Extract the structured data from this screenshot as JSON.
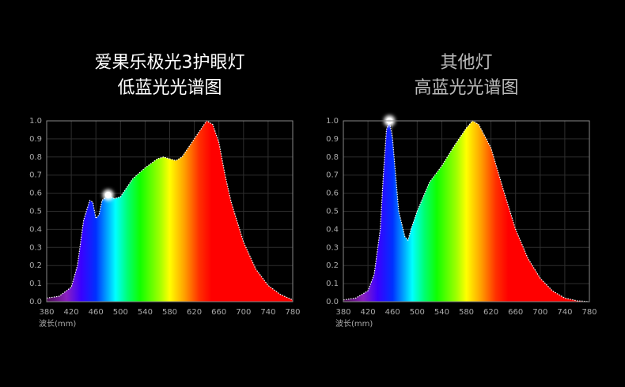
{
  "chart_data": [
    {
      "type": "area",
      "title": "爱果乐极光3护眼灯",
      "subtitle": "低蓝光光谱图",
      "x_label": "波长(mm)",
      "x": [
        380,
        400,
        420,
        430,
        440,
        450,
        455,
        460,
        465,
        470,
        480,
        490,
        500,
        510,
        520,
        540,
        560,
        570,
        580,
        590,
        600,
        620,
        640,
        650,
        660,
        670,
        680,
        700,
        720,
        740,
        760,
        780
      ],
      "values": [
        0.02,
        0.03,
        0.08,
        0.2,
        0.45,
        0.56,
        0.55,
        0.46,
        0.48,
        0.56,
        0.59,
        0.57,
        0.58,
        0.63,
        0.68,
        0.74,
        0.79,
        0.8,
        0.79,
        0.78,
        0.8,
        0.9,
        1.0,
        0.98,
        0.88,
        0.7,
        0.55,
        0.33,
        0.18,
        0.09,
        0.04,
        0.01
      ],
      "xlim": [
        380,
        780
      ],
      "xticks": [
        380,
        420,
        460,
        500,
        540,
        580,
        620,
        660,
        700,
        740,
        780
      ],
      "ylim": [
        0,
        1
      ],
      "yticks": [
        {
          "value": 0,
          "label": "0.0"
        },
        {
          "value": 0.1,
          "label": "0.1"
        },
        {
          "value": 0.2,
          "label": "0.2"
        },
        {
          "value": 0.3,
          "label": "0.3"
        },
        {
          "value": 0.4,
          "label": "0.4"
        },
        {
          "value": 0.5,
          "label": "0.5"
        },
        {
          "value": 0.6,
          "label": "0.6"
        },
        {
          "value": 0.7,
          "label": "0.7"
        },
        {
          "value": 0.8,
          "label": "0.8"
        },
        {
          "value": 0.9,
          "label": "0.9"
        },
        {
          "value": 1,
          "label": "1.0"
        }
      ],
      "grid": true
    },
    {
      "type": "area",
      "title": "其他灯",
      "subtitle": "高蓝光光谱图",
      "x_label": "波长(mm)",
      "x": [
        380,
        400,
        420,
        430,
        440,
        445,
        450,
        455,
        460,
        465,
        470,
        480,
        485,
        490,
        500,
        520,
        540,
        560,
        580,
        590,
        600,
        620,
        640,
        660,
        680,
        700,
        720,
        740,
        760,
        780
      ],
      "values": [
        0.01,
        0.02,
        0.06,
        0.15,
        0.4,
        0.7,
        0.95,
        1.0,
        0.9,
        0.7,
        0.5,
        0.36,
        0.34,
        0.4,
        0.5,
        0.66,
        0.75,
        0.86,
        0.96,
        1.0,
        0.98,
        0.85,
        0.62,
        0.4,
        0.24,
        0.13,
        0.06,
        0.02,
        0.005,
        0
      ],
      "xlim": [
        380,
        780
      ],
      "xticks": [
        380,
        420,
        460,
        500,
        540,
        580,
        620,
        660,
        700,
        740,
        780
      ],
      "ylim": [
        0,
        1
      ],
      "yticks": [
        {
          "value": 0,
          "label": "0.0"
        },
        {
          "value": 0.1,
          "label": "0.1"
        },
        {
          "value": 0.2,
          "label": "0.2"
        },
        {
          "value": 0.3,
          "label": "0.3"
        },
        {
          "value": 0.4,
          "label": "0.4"
        },
        {
          "value": 0.5,
          "label": "0.5"
        },
        {
          "value": 0.6,
          "label": "0.6"
        },
        {
          "value": 0.7,
          "label": "0.7"
        },
        {
          "value": 0.8,
          "label": "0.8"
        },
        {
          "value": 0.9,
          "label": "0.9"
        },
        {
          "value": 1,
          "label": "1.0"
        }
      ],
      "grid": true
    }
  ]
}
